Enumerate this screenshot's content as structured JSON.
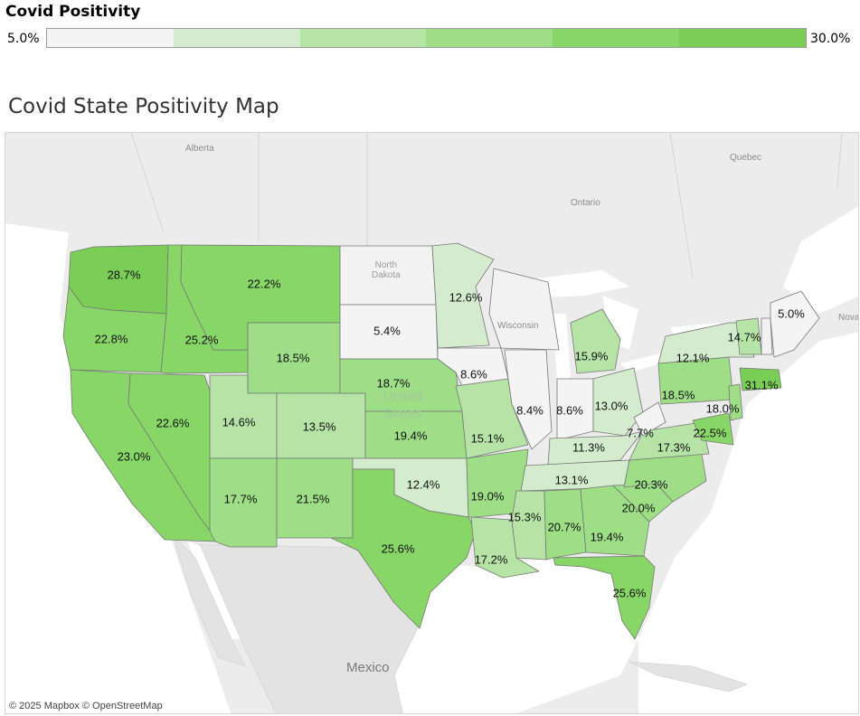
{
  "legend": {
    "title": "Covid Positivity",
    "min_label": "5.0%",
    "max_label": "30.0%",
    "steps": [
      "#f4f4f4",
      "#d4eccd",
      "#b6e3a6",
      "#9dde87",
      "#88d568",
      "#7ace55"
    ]
  },
  "map": {
    "title": "Covid State Positivity Map",
    "attribution": "© 2025 Mapbox © OpenStreetMap",
    "places": {
      "alberta": "Alberta",
      "ontario": "Ontario",
      "quebec": "Quebec",
      "north_dakota": "North\nDakota",
      "wisconsin": "Wisconsin",
      "united_states": "United\nStates",
      "mexico": "Mexico",
      "nova": "Nova"
    },
    "states": {
      "WA": "28.7%",
      "OR": "22.8%",
      "CA": "23.0%",
      "NV": "22.6%",
      "ID": "25.2%",
      "MT": "22.2%",
      "WY": "18.5%",
      "UT": "14.6%",
      "CO": "13.5%",
      "AZ": "17.7%",
      "NM": "21.5%",
      "SD": "5.4%",
      "NE": "18.7%",
      "KS": "19.4%",
      "OK": "12.4%",
      "TX": "25.6%",
      "MN": "12.6%",
      "IA": "8.6%",
      "MO": "15.1%",
      "AR": "19.0%",
      "LA": "17.2%",
      "IL": "8.4%",
      "IN": "8.6%",
      "MI": "15.9%",
      "OH": "13.0%",
      "KY": "11.3%",
      "TN": "13.1%",
      "MS": "15.3%",
      "AL": "20.7%",
      "GA": "19.4%",
      "FL": "25.6%",
      "SC": "20.0%",
      "NC": "20.3%",
      "VA": "17.3%",
      "WV": "7.7%",
      "PA": "18.5%",
      "NY": "12.1%",
      "VT": "14.7%",
      "ME": "5.0%",
      "MA": "31.1%",
      "NJ": "18.0%",
      "MD": "22.5%"
    }
  }
}
